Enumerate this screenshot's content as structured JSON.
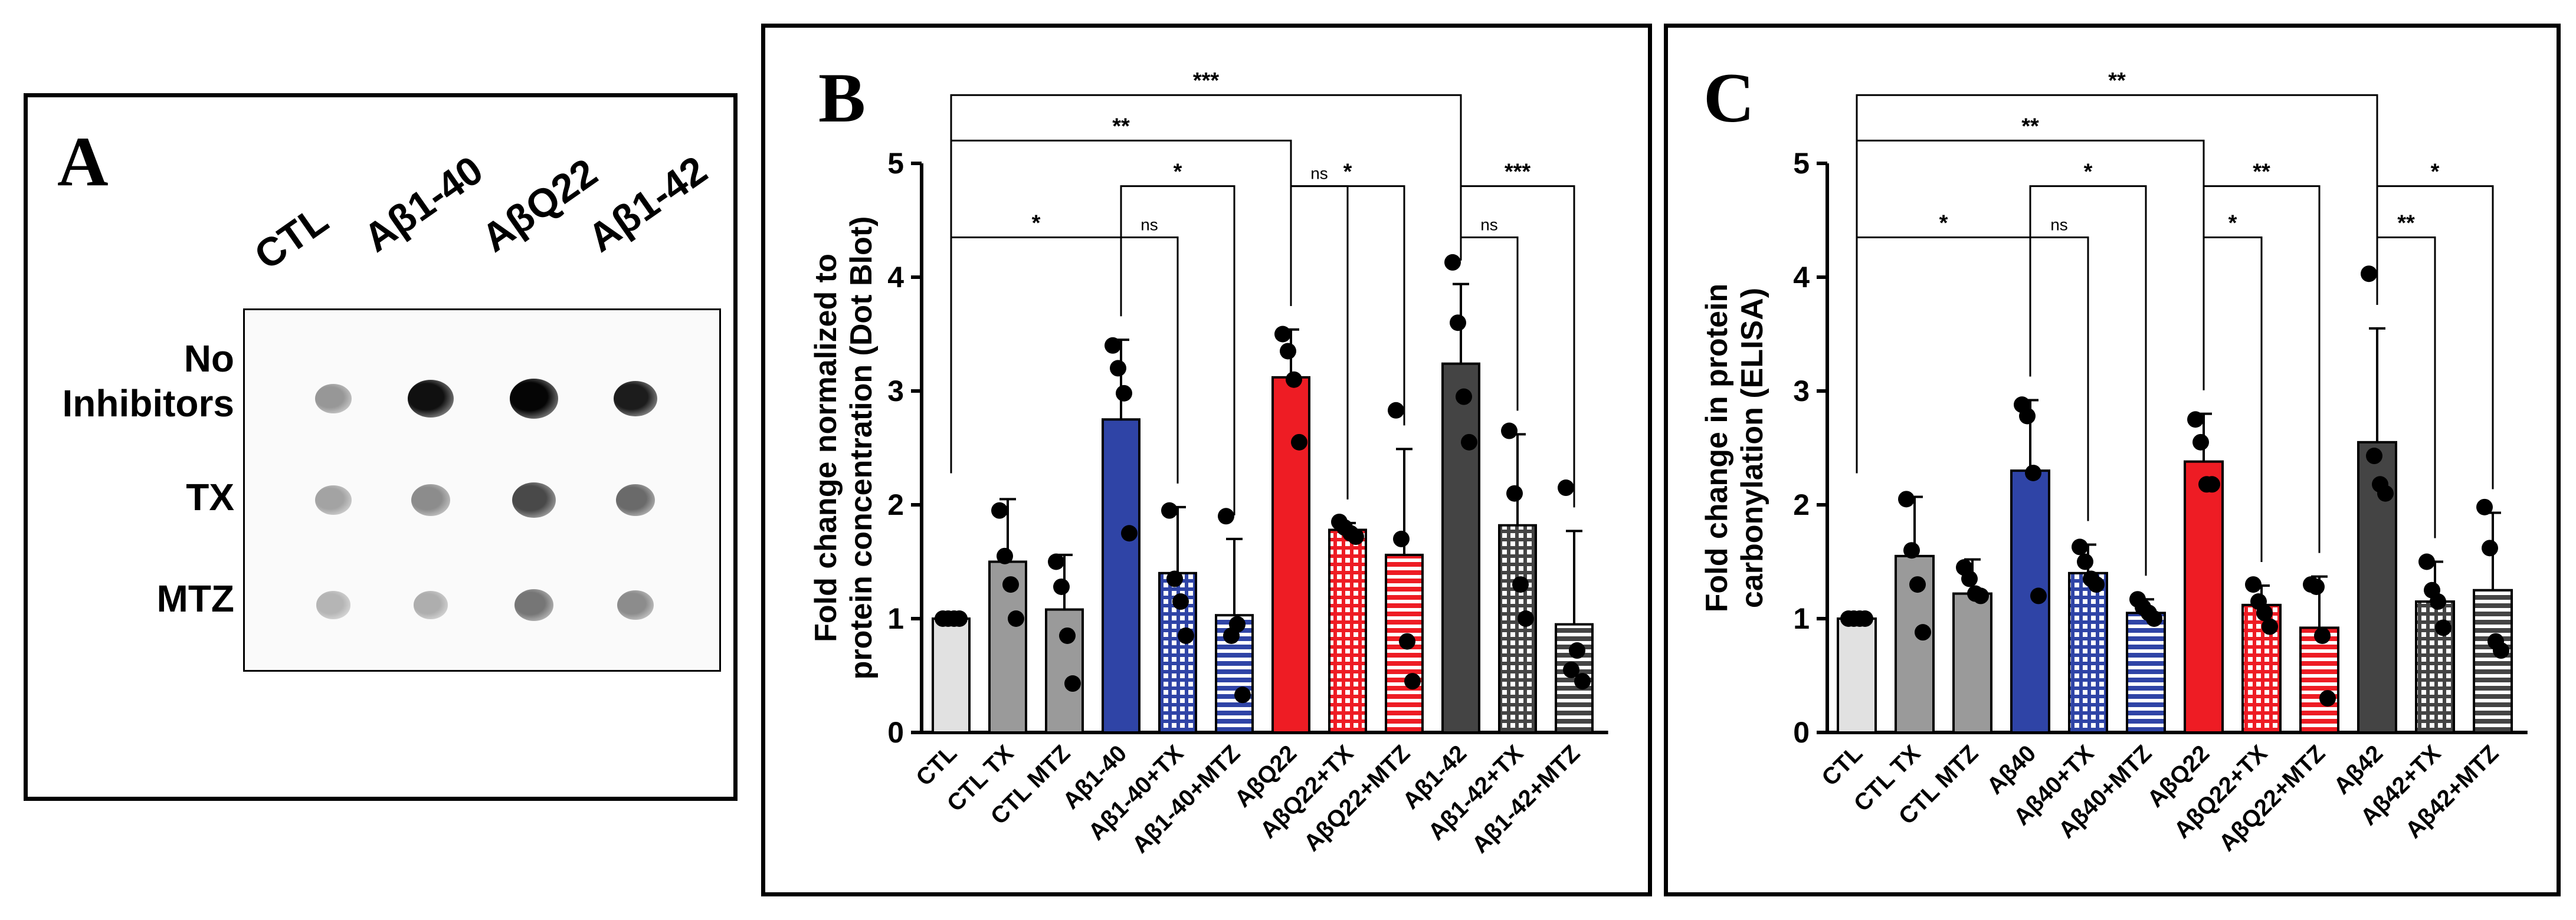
{
  "colors": {
    "ctl": "#e1e1e1",
    "gray": "#9a9a9a",
    "blue": "#2f44a6",
    "red": "#ee1c24",
    "dark": "#444444",
    "white": "#ffffff"
  },
  "panelA": {
    "label": "A",
    "lanes": [
      "CTL",
      "Aβ1-40",
      "AβQ22",
      "Aβ1-42"
    ],
    "rows": [
      "No Inhibitors",
      "TX",
      "MTZ"
    ],
    "row_line1": "No",
    "row_line2": "Inhibitors",
    "intensity": [
      [
        0.35,
        0.95,
        1.0,
        0.9
      ],
      [
        0.3,
        0.4,
        0.7,
        0.55
      ],
      [
        0.22,
        0.25,
        0.5,
        0.4
      ]
    ],
    "dot_size": [
      [
        0.75,
        0.95,
        1.0,
        0.9
      ],
      [
        0.75,
        0.8,
        0.9,
        0.8
      ],
      [
        0.7,
        0.7,
        0.8,
        0.75
      ]
    ]
  },
  "chart_data": [
    {
      "type": "bar",
      "panel": "B",
      "ylabel_line1": "Fold change normalized to",
      "ylabel_line2": "protein concentration (Dot Blot)",
      "ylim": [
        0,
        5
      ],
      "yticks": [
        "0",
        "1",
        "2",
        "3",
        "4",
        "5"
      ],
      "categories": [
        "CTL",
        "CTL TX",
        "CTL MTZ",
        "Aβ1-40",
        "Aβ1-40+TX",
        "Aβ1-40+MTZ",
        "AβQ22",
        "AβQ22+TX",
        "AβQ22+MTZ",
        "Aβ1-42",
        "Aβ1-42+TX",
        "Aβ1-42+MTZ"
      ],
      "values": [
        1.0,
        1.5,
        1.08,
        2.75,
        1.4,
        1.03,
        3.12,
        1.78,
        1.56,
        3.24,
        1.82,
        0.95
      ],
      "errors": [
        0.0,
        0.55,
        0.48,
        0.7,
        0.58,
        0.67,
        0.42,
        0.06,
        0.93,
        0.7,
        0.8,
        0.82
      ],
      "points": [
        [
          1.0,
          1.0,
          1.0,
          1.0
        ],
        [
          1.95,
          1.55,
          1.3,
          1.0
        ],
        [
          1.5,
          1.28,
          0.85,
          0.43
        ],
        [
          3.4,
          3.2,
          2.98,
          1.75
        ],
        [
          1.95,
          1.35,
          1.15,
          0.85
        ],
        [
          1.9,
          0.85,
          0.95,
          0.33
        ],
        [
          3.5,
          3.35,
          3.1,
          2.55
        ],
        [
          1.85,
          1.8,
          1.75,
          1.72
        ],
        [
          2.83,
          1.7,
          0.8,
          0.45
        ],
        [
          4.13,
          3.6,
          2.95,
          2.55
        ],
        [
          2.65,
          2.1,
          1.3,
          1.0
        ],
        [
          2.15,
          0.55,
          0.72,
          0.45
        ]
      ],
      "fills": [
        "ctl",
        "gray",
        "gray",
        "blue",
        "blue-grid",
        "blue-stripe",
        "red",
        "red-grid",
        "red-stripe",
        "dark",
        "dark-grid",
        "dark-stripe"
      ],
      "comparisons": [
        {
          "from": 0,
          "to": 3,
          "label": "*",
          "level": 4.35
        },
        {
          "from": 3,
          "to": 4,
          "label": "ns",
          "level": 4.35
        },
        {
          "from": 3,
          "to": 5,
          "label": "*",
          "level": 4.8
        },
        {
          "from": 6,
          "to": 7,
          "label": "ns",
          "level": 4.8
        },
        {
          "from": 6,
          "to": 8,
          "label": "*",
          "level": 4.8
        },
        {
          "from": 9,
          "to": 10,
          "label": "ns",
          "level": 4.35
        },
        {
          "from": 9,
          "to": 11,
          "label": "***",
          "level": 4.8
        },
        {
          "from": 0,
          "to": 6,
          "label": "**",
          "level": 5.2
        },
        {
          "from": 0,
          "to": 9,
          "label": "***",
          "level": 5.6
        }
      ]
    },
    {
      "type": "bar",
      "panel": "C",
      "ylabel_line1": "Fold change in protein",
      "ylabel_line2": "carbonylation (ELISA)",
      "ylim": [
        0,
        5
      ],
      "yticks": [
        "0",
        "1",
        "2",
        "3",
        "4",
        "5"
      ],
      "categories": [
        "CTL",
        "CTL TX",
        "CTL MTZ",
        "Aβ40",
        "Aβ40+TX",
        "Aβ40+MTZ",
        "AβQ22",
        "AβQ22+TX",
        "AβQ22+MTZ",
        "Aβ42",
        "Aβ42+TX",
        "Aβ42+MTZ"
      ],
      "values": [
        1.0,
        1.55,
        1.22,
        2.3,
        1.4,
        1.05,
        2.38,
        1.12,
        0.92,
        2.55,
        1.15,
        1.25
      ],
      "errors": [
        0.0,
        0.52,
        0.3,
        0.62,
        0.25,
        0.12,
        0.42,
        0.17,
        0.45,
        1.0,
        0.35,
        0.68
      ],
      "points": [
        [
          1.0,
          1.0,
          1.0,
          1.0
        ],
        [
          2.05,
          1.6,
          1.3,
          0.88
        ],
        [
          1.45,
          1.35,
          1.22,
          1.2
        ],
        [
          2.88,
          2.78,
          2.28,
          1.2
        ],
        [
          1.63,
          1.5,
          1.35,
          1.3
        ],
        [
          1.17,
          1.1,
          1.05,
          1.0
        ],
        [
          2.75,
          2.55,
          2.18,
          2.18
        ],
        [
          1.3,
          1.15,
          1.05,
          0.93
        ],
        [
          1.3,
          1.28,
          0.85,
          0.3
        ],
        [
          4.03,
          2.43,
          2.18,
          2.1
        ],
        [
          1.5,
          1.25,
          1.15,
          0.92
        ],
        [
          1.98,
          1.62,
          0.8,
          0.72
        ]
      ],
      "fills": [
        "ctl",
        "gray",
        "gray",
        "blue",
        "blue-grid",
        "blue-stripe",
        "red",
        "red-grid",
        "red-stripe",
        "dark",
        "dark-grid",
        "dark-stripe"
      ],
      "comparisons": [
        {
          "from": 0,
          "to": 3,
          "label": "*",
          "level": 4.35
        },
        {
          "from": 3,
          "to": 4,
          "label": "ns",
          "level": 4.35
        },
        {
          "from": 3,
          "to": 5,
          "label": "*",
          "level": 4.8
        },
        {
          "from": 6,
          "to": 7,
          "label": "*",
          "level": 4.35
        },
        {
          "from": 6,
          "to": 8,
          "label": "**",
          "level": 4.8
        },
        {
          "from": 9,
          "to": 10,
          "label": "**",
          "level": 4.35
        },
        {
          "from": 9,
          "to": 11,
          "label": "*",
          "level": 4.8
        },
        {
          "from": 0,
          "to": 6,
          "label": "**",
          "level": 5.2
        },
        {
          "from": 0,
          "to": 9,
          "label": "**",
          "level": 5.6
        }
      ]
    }
  ],
  "labels": {
    "B": "B",
    "C": "C"
  }
}
